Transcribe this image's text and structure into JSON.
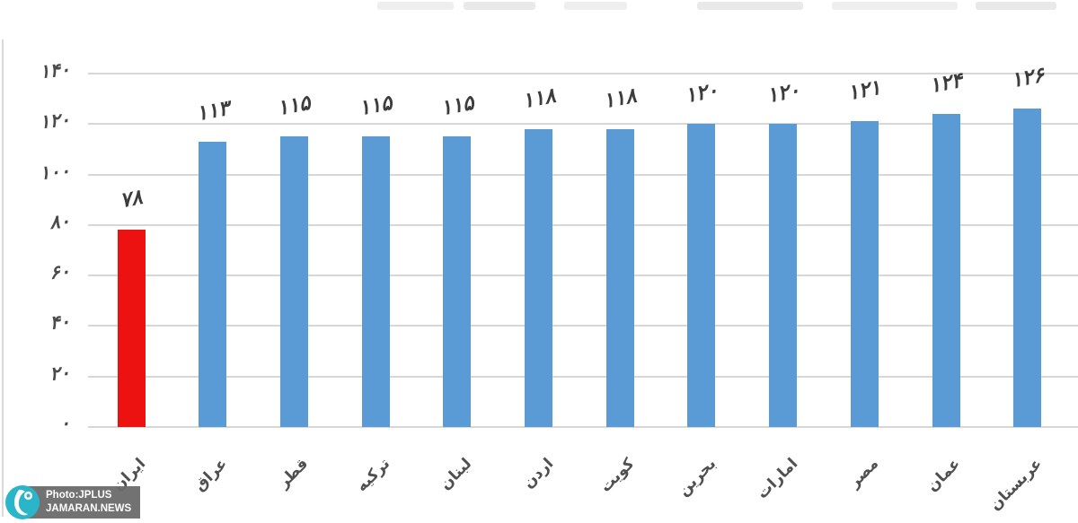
{
  "chart_data": {
    "type": "bar",
    "categories": [
      "ایران",
      "عراق",
      "قطر",
      "ترکیه",
      "لبنان",
      "اردن",
      "کویت",
      "بحرین",
      "امارات",
      "مصر",
      "عمان",
      "عربستان"
    ],
    "values": [
      78,
      113,
      115,
      115,
      115,
      118,
      118,
      120,
      120,
      121,
      124,
      126
    ],
    "value_labels_fa": [
      "۷۸",
      "۱۱۳",
      "۱۱۵",
      "۱۱۵",
      "۱۱۵",
      "۱۱۸",
      "۱۱۸",
      "۱۲۰",
      "۱۲۰",
      "۱۲۱",
      "۱۲۴",
      "۱۲۶"
    ],
    "y_ticks": [
      0,
      20,
      40,
      60,
      80,
      100,
      120,
      140
    ],
    "y_tick_labels_fa": [
      "۰",
      "۲۰",
      "۴۰",
      "۶۰",
      "۸۰",
      "۱۰۰",
      "۱۲۰",
      "۱۴۰"
    ],
    "ylim": [
      0,
      140
    ],
    "grid": true,
    "legend_position": "none",
    "bar_color": "#5B9BD5",
    "highlight_index": 0,
    "highlight_color": "#EC1212",
    "gridline_color": "#c9c9c9",
    "label_color": "#3c3c3c"
  },
  "watermark": {
    "line1": "Photo:JPLUS",
    "line2": "JAMARAN.NEWS",
    "logo_color": "#2BB5C9"
  }
}
